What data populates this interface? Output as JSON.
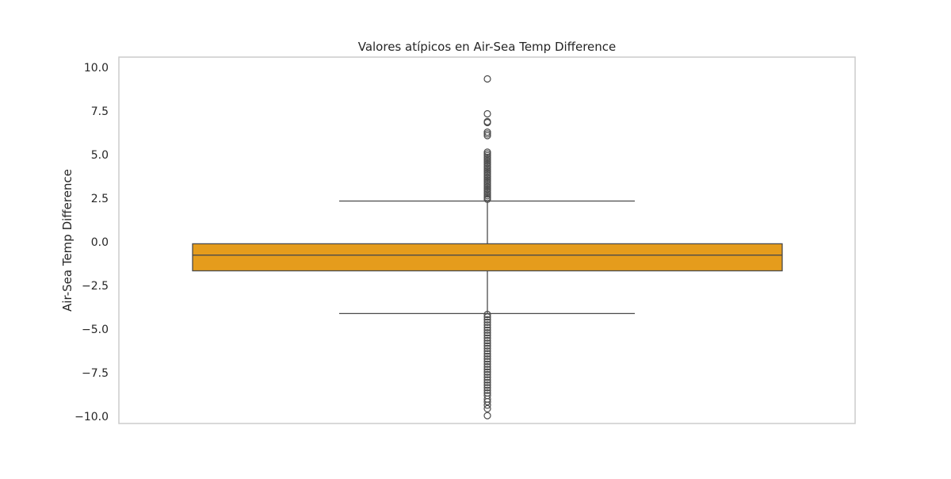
{
  "chart_data": {
    "type": "box",
    "title": "Valores atípicos en Air-Sea Temp Difference",
    "xlabel": "",
    "ylabel": "Air-Sea Temp Difference",
    "ylim": [
      -10.4,
      10.6
    ],
    "yticks": [
      10.0,
      7.5,
      5.0,
      2.5,
      0.0,
      -2.5,
      -5.0,
      -7.5,
      -10.0
    ],
    "ytick_labels": [
      "10.0",
      "7.5",
      "5.0",
      "2.5",
      "0.0",
      "−2.5",
      "−5.0",
      "−7.5",
      "−10.0"
    ],
    "grid": false,
    "box": {
      "q1": -1.65,
      "median": -0.75,
      "q3": -0.1,
      "whisker_low": -4.1,
      "whisker_high": 2.35,
      "color": "#E59C1C",
      "edge_color": "#4a4a4a",
      "outliers": [
        9.35,
        7.35,
        6.9,
        6.85,
        6.3,
        6.2,
        6.1,
        5.15,
        5.05,
        4.95,
        4.85,
        4.75,
        4.65,
        4.55,
        4.45,
        4.35,
        4.25,
        4.15,
        4.05,
        3.95,
        3.85,
        3.75,
        3.65,
        3.55,
        3.45,
        3.35,
        3.25,
        3.15,
        3.05,
        2.95,
        2.85,
        2.75,
        2.65,
        2.55,
        2.45,
        -4.15,
        -4.3,
        -4.45,
        -4.6,
        -4.75,
        -4.9,
        -5.05,
        -5.2,
        -5.35,
        -5.5,
        -5.65,
        -5.8,
        -5.95,
        -6.1,
        -6.25,
        -6.4,
        -6.55,
        -6.7,
        -6.85,
        -7.0,
        -7.15,
        -7.3,
        -7.45,
        -7.6,
        -7.75,
        -7.9,
        -8.05,
        -8.2,
        -8.35,
        -8.5,
        -8.65,
        -8.8,
        -9.0,
        -9.15,
        -9.35,
        -9.55,
        -9.95
      ]
    },
    "colors": {
      "axes_edge": "#cccccc",
      "text": "#262626"
    }
  }
}
